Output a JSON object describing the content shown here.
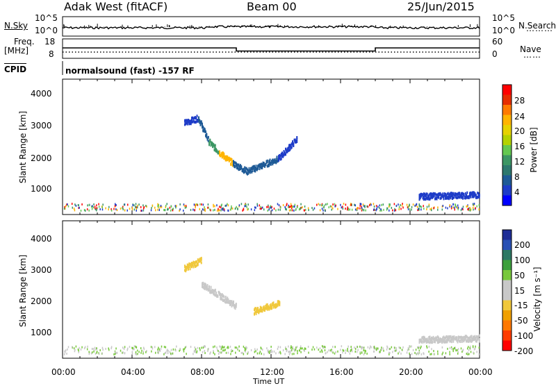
{
  "header": {
    "station": "Adak West (fitACF)",
    "beam": "Beam 00",
    "date": "25/Jun/2015"
  },
  "noise_panel": {
    "left_label": "N.Sky",
    "left_ticks": [
      "10^5",
      "10^0"
    ],
    "right_label": "N.Search",
    "right_ticks": [
      "10^5",
      "10^0"
    ]
  },
  "freq_panel": {
    "left_label_line1": "Freq.",
    "left_label_line2": "[MHz]",
    "left_ticks": [
      "18",
      "8"
    ],
    "right_label": "Nave",
    "right_ticks": [
      "60",
      "0"
    ]
  },
  "cpid_panel": {
    "label": "CPID",
    "text": "normalsound (fast) -157 RF"
  },
  "power_panel": {
    "ylabel": "Slant Range [km]",
    "yticks": [
      "4000",
      "3000",
      "2000",
      "1000"
    ],
    "cbar_label": "Power [dB]",
    "cbar_ticks": [
      "28",
      "24",
      "20",
      "16",
      "12",
      "8",
      "4"
    ],
    "cbar_colors": [
      "#ff0000",
      "#e62d00",
      "#ff7a00",
      "#ffb400",
      "#e6d200",
      "#b4d200",
      "#64c850",
      "#3c9664",
      "#2d786e",
      "#1e5a96",
      "#1e3cc8",
      "#0000ff"
    ]
  },
  "velocity_panel": {
    "ylabel": "Slant Range [km]",
    "yticks": [
      "4000",
      "3000",
      "2000",
      "1000"
    ],
    "cbar_label": "Velocity [m s⁻¹]",
    "cbar_ticks": [
      "200",
      "100",
      "50",
      "15",
      "-15",
      "-50",
      "-100",
      "-200"
    ],
    "cbar_colors": [
      "#1e2d96",
      "#2850b4",
      "#2d7864",
      "#3ca03c",
      "#78c83c",
      "#c8c8c8",
      "#c8c8c8",
      "#f0c83c",
      "#f0a000",
      "#ff7800",
      "#ff3c00",
      "#ff0000"
    ]
  },
  "xaxis": {
    "label": "Time UT",
    "ticks": [
      "00:00",
      "04:00",
      "08:00",
      "12:00",
      "16:00",
      "20:00",
      "00:00"
    ]
  },
  "chart_data": {
    "type": "heatmap",
    "title": "Adak West (fitACF) Beam 00 25/Jun/2015",
    "x_unit": "hours UT",
    "xlim": [
      0,
      24
    ],
    "ylim_km": [
      180,
      4500
    ],
    "frequency_mhz": [
      {
        "start": 0,
        "end": 10,
        "value": 13
      },
      {
        "start": 10,
        "end": 18,
        "value": 10.5
      },
      {
        "start": 18,
        "end": 24,
        "value": 13
      }
    ],
    "power_features": [
      {
        "t_start": 7.0,
        "t_end": 7.8,
        "range_start": 3100,
        "range_end": 3250,
        "power_db": 4
      },
      {
        "t_start": 7.8,
        "t_end": 8.4,
        "range_start": 3250,
        "range_end": 2500,
        "power_db": 6
      },
      {
        "t_start": 8.4,
        "t_end": 9.0,
        "range_start": 2500,
        "range_end": 2150,
        "power_db": 10
      },
      {
        "t_start": 9.0,
        "t_end": 9.8,
        "range_start": 2150,
        "range_end": 1800,
        "power_db": 20
      },
      {
        "t_start": 9.8,
        "t_end": 10.6,
        "range_start": 1800,
        "range_end": 1550,
        "power_db": 6
      },
      {
        "t_start": 10.6,
        "t_end": 12.4,
        "range_start": 1550,
        "range_end": 1950,
        "power_db": 5
      },
      {
        "t_start": 12.4,
        "t_end": 13.5,
        "range_start": 1950,
        "range_end": 2600,
        "power_db": 4
      },
      {
        "t_start": 20.5,
        "t_end": 24.0,
        "range_start": 750,
        "range_end": 800,
        "power_db": 4
      }
    ],
    "velocity_features": [
      {
        "t_start": 7.0,
        "t_end": 8.0,
        "range_start": 3000,
        "range_end": 3250,
        "velocity_ms": -30
      },
      {
        "t_start": 8.0,
        "t_end": 10.0,
        "range_start": 2500,
        "range_end": 1800,
        "velocity_ms": 0
      },
      {
        "t_start": 11.0,
        "t_end": 12.5,
        "range_start": 1650,
        "range_end": 1900,
        "velocity_ms": -40
      },
      {
        "t_start": 20.5,
        "t_end": 24.0,
        "range_start": 750,
        "range_end": 800,
        "velocity_ms": 0
      }
    ]
  }
}
